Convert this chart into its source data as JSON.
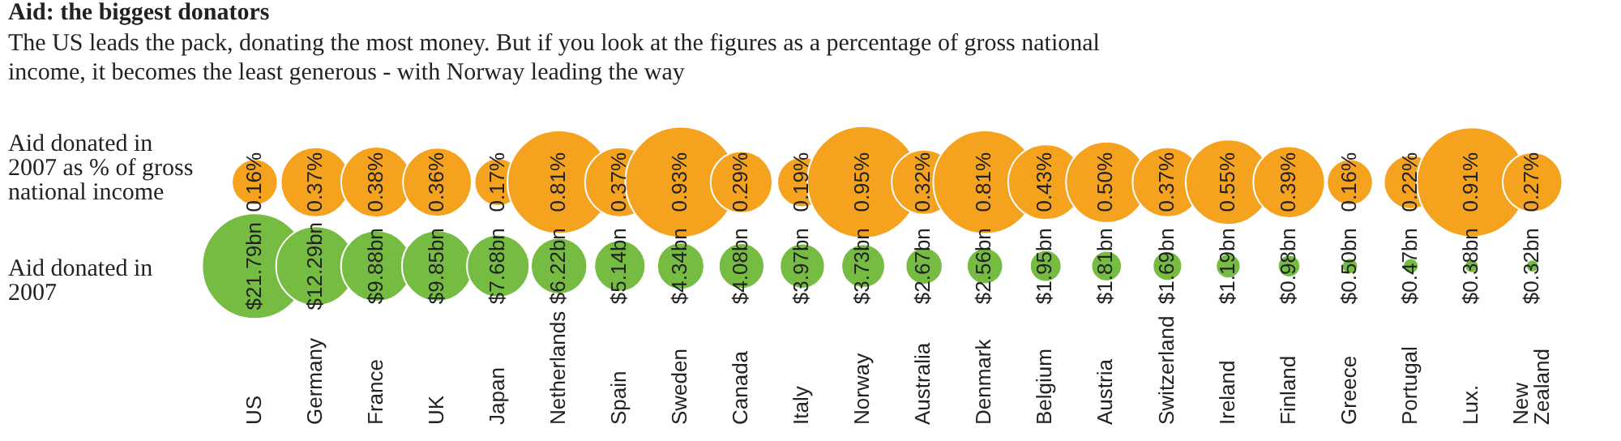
{
  "chart_data": {
    "type": "other",
    "title": "Aid: the biggest donators",
    "subtitle": "The US leads the pack, donating the most money. But if you look at the figures as a percentage of gross national income, it becomes the least generous - with Norway leading the way",
    "categories": [
      "US",
      "Germany",
      "France",
      "UK",
      "Japan",
      "Netherlands",
      "Spain",
      "Sweden",
      "Canada",
      "Italy",
      "Norway",
      "Australia",
      "Denmark",
      "Belgium",
      "Austria",
      "Switzerland",
      "Ireland",
      "Finland",
      "Greece",
      "Portugal",
      "Lux.",
      "New Zealand"
    ],
    "series": [
      {
        "name": "Aid donated in 2007 as % of gross national income",
        "color": "#f5a31f",
        "values": [
          0.16,
          0.37,
          0.38,
          0.36,
          0.17,
          0.81,
          0.37,
          0.93,
          0.29,
          0.19,
          0.95,
          0.32,
          0.81,
          0.43,
          0.5,
          0.37,
          0.55,
          0.39,
          0.16,
          0.22,
          0.91,
          0.27
        ],
        "value_labels": [
          "0.16%",
          "0.37%",
          "0.38%",
          "0.36%",
          "0.17%",
          "0.81%",
          "0.37%",
          "0.93%",
          "0.29%",
          "0.19%",
          "0.95%",
          "0.32%",
          "0.81%",
          "0.43%",
          "0.50%",
          "0.37%",
          "0.55%",
          "0.39%",
          "0.16%",
          "0.22%",
          "0.91%",
          "0.27%"
        ]
      },
      {
        "name": "Aid donated in 2007",
        "color": "#76bc43",
        "values": [
          21.79,
          12.29,
          9.88,
          9.85,
          7.68,
          6.22,
          5.14,
          4.34,
          4.08,
          3.97,
          3.73,
          2.67,
          2.56,
          1.95,
          1.81,
          1.69,
          1.19,
          0.98,
          0.5,
          0.47,
          0.38,
          0.32
        ],
        "value_labels": [
          "$21.79bn",
          "$12.29bn",
          "$9.88bn",
          "$9.85bn",
          "$7.68bn",
          "$6.22bn",
          "$5.14bn",
          "$4.34bn",
          "$4.08bn",
          "$3.97bn",
          "$3.73bn",
          "$2.67bn",
          "$2.56bn",
          "$1.95bn",
          "$1.81bn",
          "$1.69bn",
          "$1.19bn",
          "$0.98bn",
          "$0.50bn",
          "$0.47bn",
          "$0.38bn",
          "$0.32bn"
        ]
      }
    ]
  }
}
